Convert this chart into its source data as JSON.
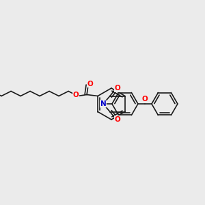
{
  "background_color": "#ebebeb",
  "bond_color": "#1a1a1a",
  "bond_width": 1.2,
  "atom_colors": {
    "O": "#ff0000",
    "N": "#0000cc",
    "C": "#1a1a1a"
  },
  "font_size_atom": 7.5,
  "figsize": [
    3.0,
    3.0
  ],
  "dpi": 100
}
